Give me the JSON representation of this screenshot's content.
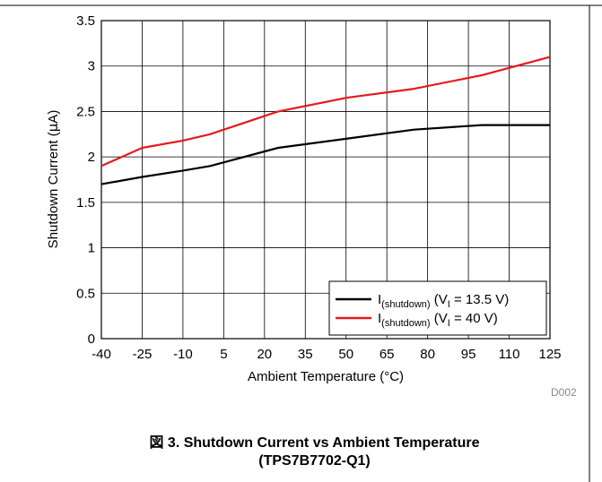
{
  "chart_data": {
    "type": "line",
    "x": [
      -40,
      -25,
      -10,
      5,
      20,
      35,
      50,
      65,
      80,
      95,
      110,
      125
    ],
    "xlim": [
      -40,
      125
    ],
    "ylim": [
      0,
      3.5
    ],
    "xticks": [
      "-40",
      "-25",
      "-10",
      "5",
      "20",
      "35",
      "50",
      "65",
      "80",
      "95",
      "110",
      "125"
    ],
    "yticks": [
      "0",
      "0.5",
      "1",
      "1.5",
      "2",
      "2.5",
      "3",
      "3.5"
    ],
    "xlabel": "Ambient Temperature (°C)",
    "ylabel_prefix": "Shutdown Current (",
    "ylabel_unit": "µ",
    "ylabel_suffix": "A)",
    "grid": true,
    "legend_position": "bottom-right",
    "series": [
      {
        "name": "I(shutdown) (VI = 13.5 V)",
        "legend": {
          "main": "I",
          "sub": "(shutdown)",
          "mid": " (V",
          "sub2": "I",
          "tail": " = 13.5 V)"
        },
        "color": "#000000",
        "points": [
          [
            -40,
            1.7
          ],
          [
            -25,
            1.78
          ],
          [
            -10,
            1.85
          ],
          [
            0,
            1.9
          ],
          [
            25,
            2.1
          ],
          [
            50,
            2.2
          ],
          [
            75,
            2.3
          ],
          [
            100,
            2.35
          ],
          [
            125,
            2.35
          ]
        ]
      },
      {
        "name": "I(shutdown) (VI = 40 V)",
        "legend": {
          "main": "I",
          "sub": "(shutdown)",
          "mid": " (V",
          "sub2": "I",
          "tail": " = 40 V)"
        },
        "color": "#e41a1c",
        "points": [
          [
            -40,
            1.9
          ],
          [
            -25,
            2.1
          ],
          [
            -10,
            2.18
          ],
          [
            0,
            2.25
          ],
          [
            25,
            2.5
          ],
          [
            50,
            2.65
          ],
          [
            75,
            2.75
          ],
          [
            100,
            2.9
          ],
          [
            125,
            3.1
          ]
        ]
      }
    ]
  },
  "figure_code": "D002",
  "caption": {
    "line1": "図 3. Shutdown Current vs Ambient Temperature",
    "line2": "(TPS7B7702-Q1)"
  }
}
